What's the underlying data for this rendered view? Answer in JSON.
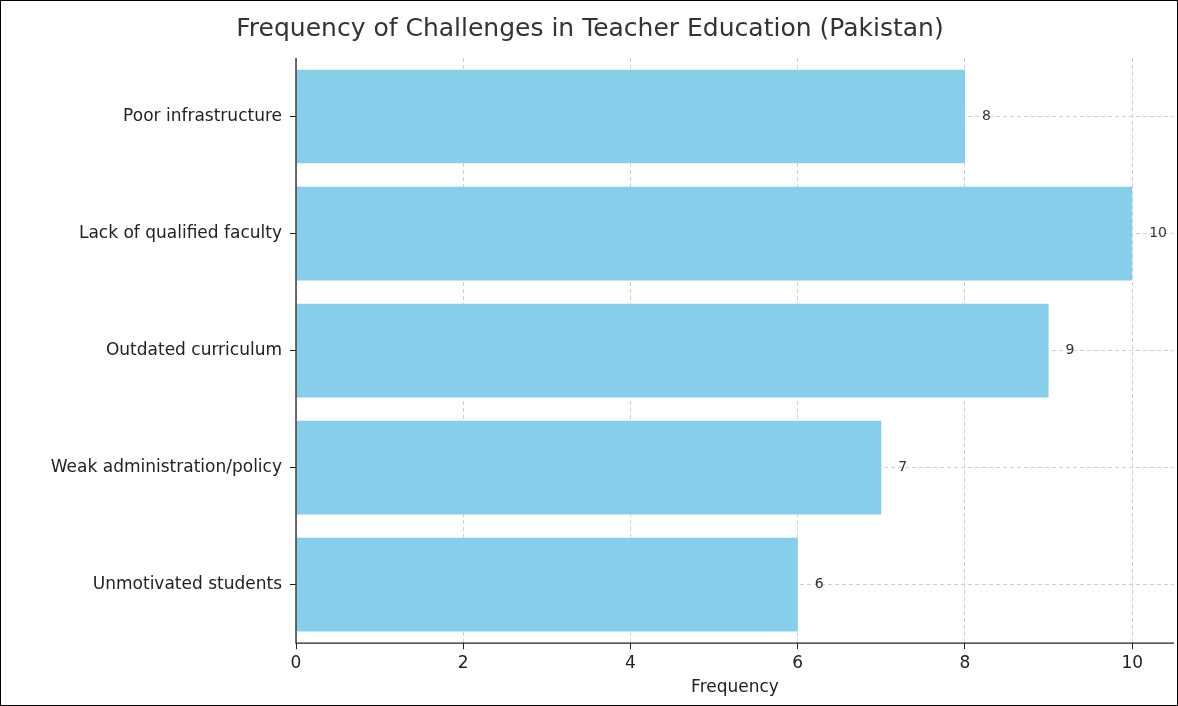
{
  "chart_data": {
    "type": "bar",
    "orientation": "horizontal",
    "title": "Frequency of Challenges in Teacher Education (Pakistan)",
    "xlabel": "Frequency",
    "categories": [
      "Poor infrastructure",
      "Lack of qualified faculty",
      "Outdated curriculum",
      "Weak administration/policy",
      "Unmotivated students"
    ],
    "values": [
      8,
      10,
      9,
      7,
      6
    ],
    "color": "#87ceeb",
    "xlim": [
      0,
      10.5
    ],
    "xticks": [
      0,
      2,
      4,
      6,
      8,
      10
    ],
    "grid": true,
    "legend": false,
    "data_labels": true
  }
}
